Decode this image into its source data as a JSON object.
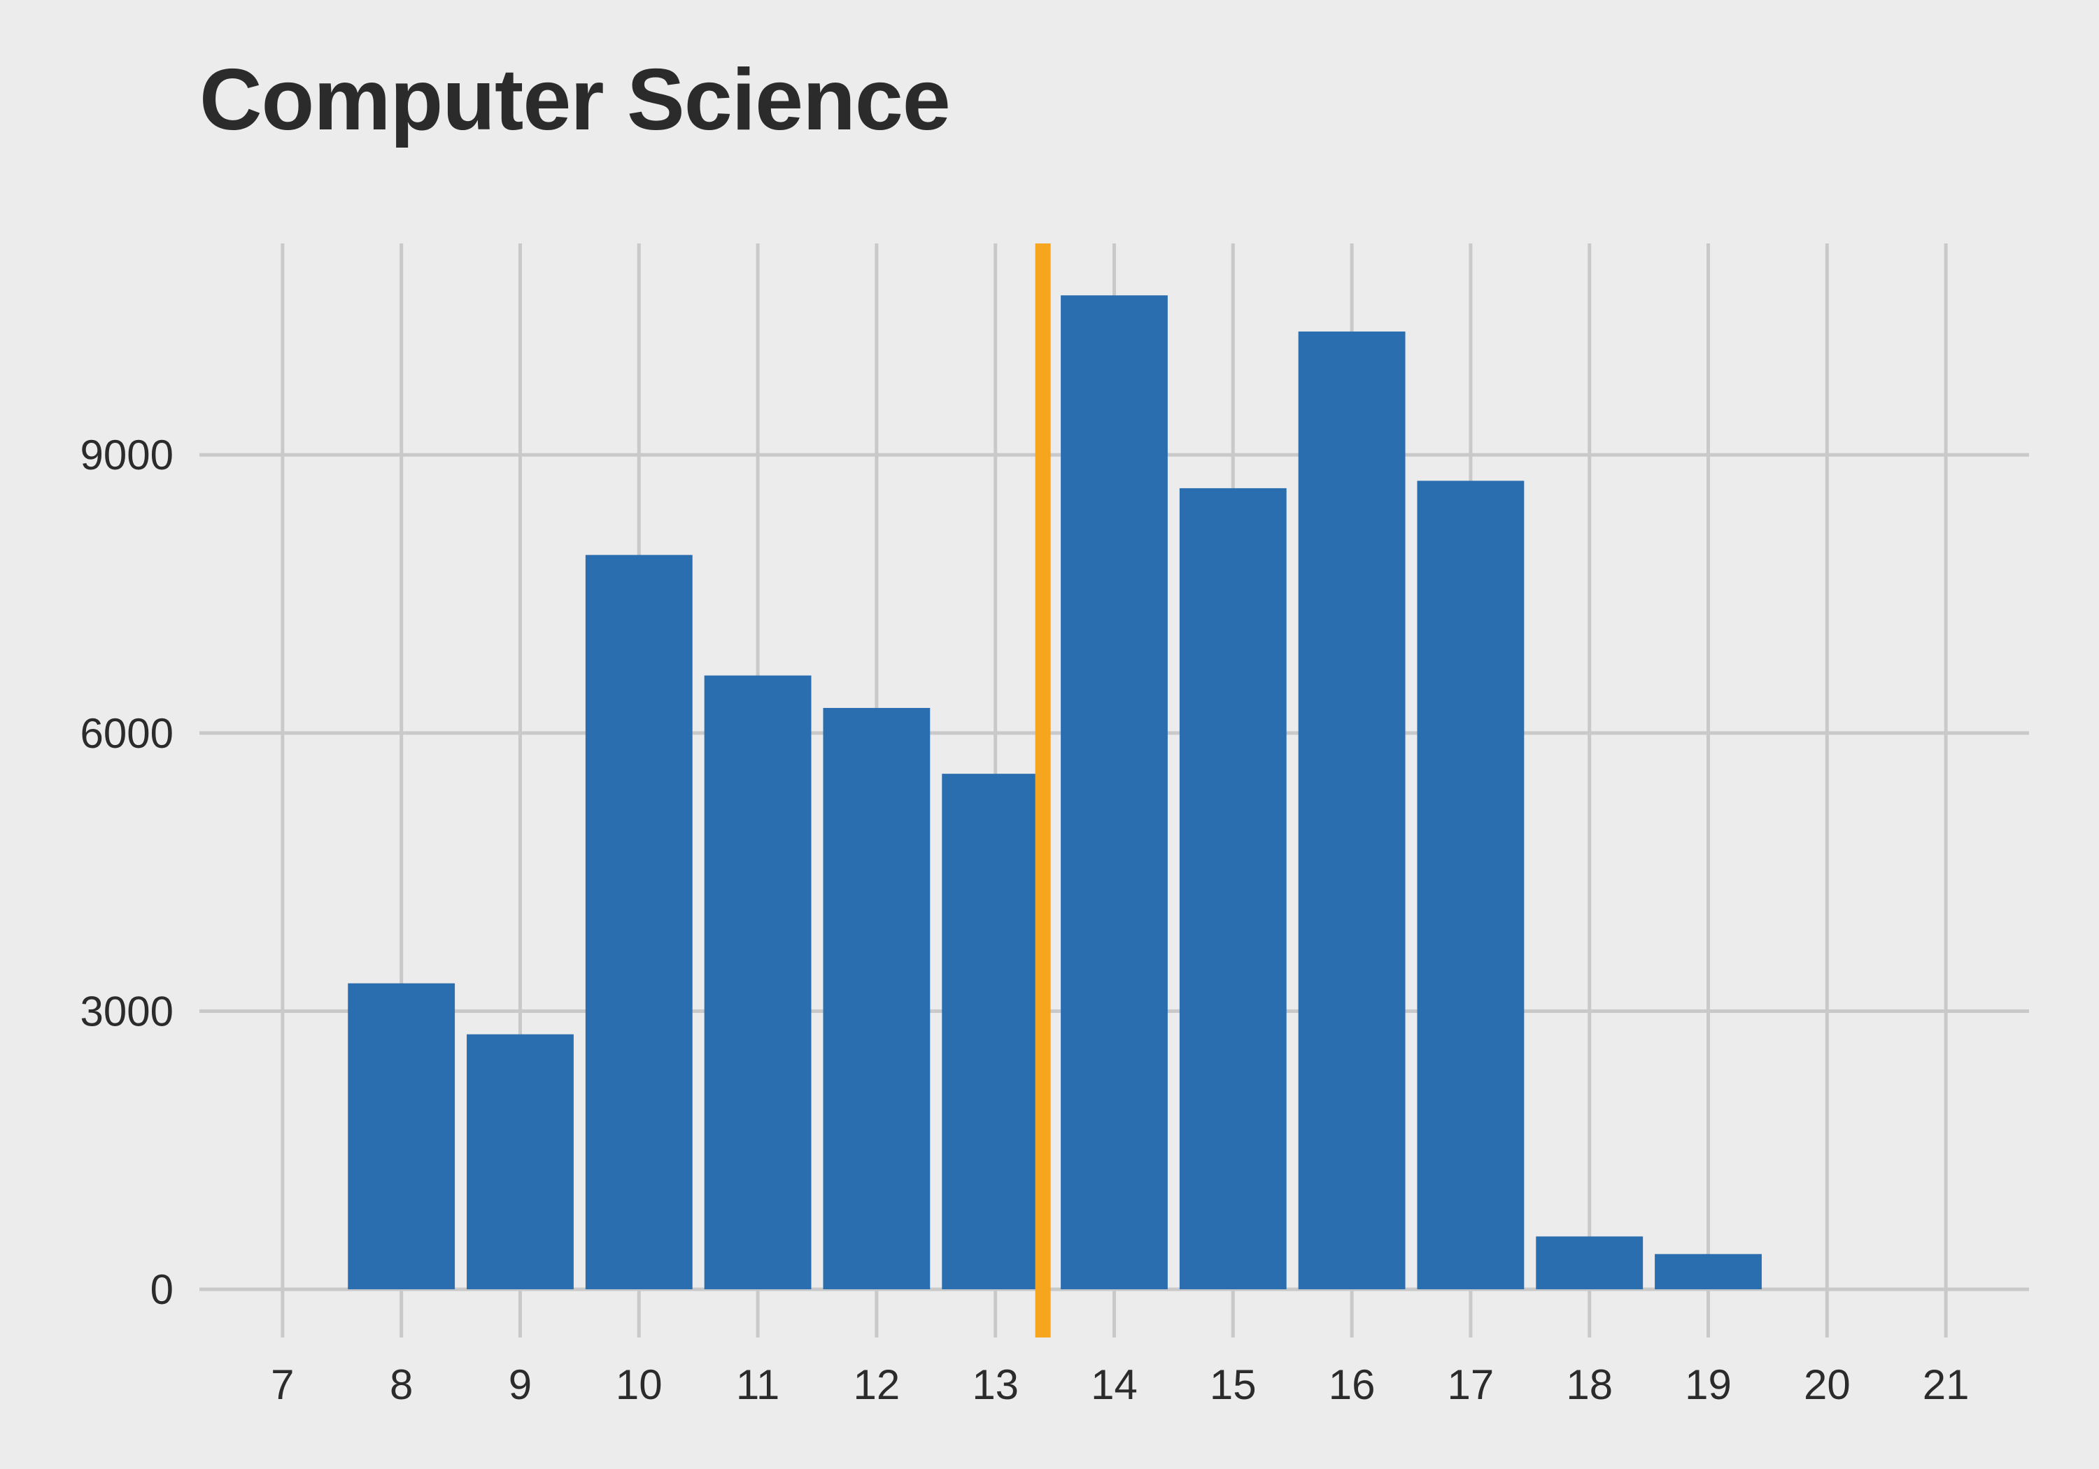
{
  "chart_data": {
    "type": "bar",
    "title": "Computer Science",
    "xlabel": "",
    "ylabel": "",
    "x_ticks": [
      7,
      8,
      9,
      10,
      11,
      12,
      13,
      14,
      15,
      16,
      17,
      18,
      19,
      20,
      21
    ],
    "y_ticks": [
      0,
      3000,
      6000,
      9000
    ],
    "xlim": [
      6.3,
      21.7
    ],
    "ylim": [
      -520,
      11280
    ],
    "categories": [
      8,
      9,
      10,
      11,
      12,
      13,
      14,
      15,
      16,
      17,
      18,
      19
    ],
    "values": [
      3300,
      2750,
      7920,
      6620,
      6270,
      5560,
      10720,
      8640,
      10330,
      8720,
      570,
      380
    ],
    "bar_width": 0.9,
    "reference_line": {
      "x": 13.4
    },
    "grid": true,
    "colors": {
      "bar": "#2a6eb0",
      "reference_line": "#f5a51e",
      "grid": "#c9c9c9",
      "background": "#ececec",
      "text": "#2b2b2b"
    }
  }
}
